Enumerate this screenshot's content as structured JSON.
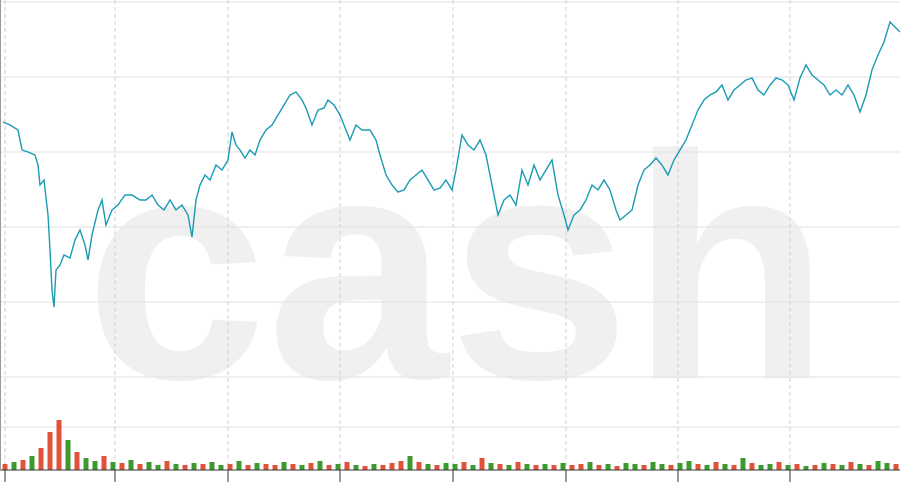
{
  "watermark": "cash",
  "chart_data": [
    {
      "type": "line",
      "color": "#1a9bb3",
      "grid": true,
      "xlim": [
        0,
        900
      ],
      "ylim": [
        0,
        470
      ],
      "xticks": [
        5,
        115,
        228,
        340,
        453,
        566,
        678,
        790
      ],
      "yticks": [
        43,
        93,
        168,
        243,
        318,
        393,
        468
      ],
      "x": [
        3,
        10,
        18,
        22,
        28,
        35,
        38,
        40,
        44,
        48,
        50,
        52,
        54,
        56,
        60,
        64,
        70,
        75,
        80,
        85,
        88,
        92,
        98,
        102,
        106,
        112,
        118,
        125,
        132,
        140,
        146,
        152,
        158,
        164,
        170,
        176,
        182,
        188,
        192,
        196,
        200,
        205,
        210,
        216,
        222,
        228,
        232,
        236,
        240,
        245,
        250,
        255,
        260,
        266,
        272,
        278,
        284,
        290,
        296,
        302,
        306,
        312,
        318,
        324,
        328,
        334,
        340,
        346,
        350,
        356,
        362,
        370,
        376,
        380,
        386,
        392,
        398,
        404,
        410,
        416,
        422,
        428,
        434,
        440,
        446,
        452,
        456,
        462,
        468,
        474,
        480,
        486,
        492,
        498,
        504,
        510,
        516,
        522,
        528,
        534,
        540,
        546,
        552,
        558,
        564,
        568,
        574,
        580,
        586,
        592,
        598,
        604,
        610,
        616,
        620,
        626,
        632,
        638,
        644,
        650,
        656,
        662,
        668,
        674,
        680,
        686,
        692,
        698,
        704,
        710,
        716,
        722,
        728,
        734,
        740,
        746,
        752,
        758,
        764,
        770,
        776,
        782,
        788,
        794,
        800,
        806,
        812,
        818,
        824,
        830,
        836,
        842,
        848,
        854,
        860,
        866,
        872,
        878,
        884,
        890,
        896,
        900
      ],
      "values": [
        348,
        345,
        340,
        320,
        318,
        315,
        305,
        285,
        290,
        255,
        220,
        180,
        163,
        200,
        205,
        215,
        212,
        230,
        240,
        225,
        210,
        235,
        260,
        270,
        245,
        260,
        265,
        275,
        275,
        270,
        270,
        275,
        265,
        260,
        270,
        260,
        265,
        255,
        233,
        270,
        285,
        295,
        290,
        305,
        300,
        310,
        338,
        325,
        320,
        312,
        320,
        315,
        330,
        340,
        345,
        355,
        365,
        375,
        378,
        370,
        362,
        345,
        360,
        362,
        370,
        365,
        355,
        340,
        330,
        345,
        340,
        340,
        330,
        315,
        295,
        285,
        278,
        280,
        290,
        295,
        300,
        290,
        280,
        282,
        290,
        280,
        300,
        335,
        325,
        320,
        330,
        315,
        285,
        255,
        270,
        275,
        265,
        300,
        285,
        305,
        290,
        300,
        310,
        275,
        255,
        240,
        255,
        260,
        270,
        285,
        280,
        290,
        280,
        260,
        250,
        255,
        260,
        285,
        300,
        305,
        312,
        305,
        295,
        310,
        320,
        330,
        345,
        360,
        370,
        375,
        378,
        385,
        370,
        380,
        385,
        390,
        392,
        380,
        375,
        385,
        392,
        390,
        385,
        370,
        392,
        405,
        395,
        390,
        385,
        375,
        380,
        375,
        385,
        375,
        358,
        375,
        400,
        415,
        428,
        448,
        442,
        438
      ]
    },
    {
      "type": "bar",
      "xlim": [
        0,
        900
      ],
      "ylim": [
        0,
        470
      ],
      "x": [
        5,
        14,
        23,
        32,
        41,
        50,
        59,
        68,
        77,
        86,
        95,
        104,
        113,
        122,
        131,
        140,
        149,
        158,
        167,
        176,
        185,
        194,
        203,
        212,
        221,
        230,
        239,
        248,
        257,
        266,
        275,
        284,
        293,
        302,
        311,
        320,
        329,
        338,
        347,
        356,
        365,
        374,
        383,
        392,
        401,
        410,
        419,
        428,
        437,
        446,
        455,
        464,
        473,
        482,
        491,
        500,
        509,
        518,
        527,
        536,
        545,
        554,
        563,
        572,
        581,
        590,
        599,
        608,
        617,
        626,
        635,
        644,
        653,
        662,
        671,
        680,
        689,
        698,
        707,
        716,
        725,
        734,
        743,
        752,
        761,
        770,
        779,
        788,
        797,
        806,
        815,
        824,
        833,
        842,
        851,
        860,
        869,
        878,
        887,
        896
      ],
      "values": [
        6,
        8,
        10,
        14,
        22,
        38,
        50,
        30,
        18,
        12,
        9,
        14,
        8,
        7,
        10,
        6,
        8,
        5,
        9,
        6,
        5,
        7,
        6,
        8,
        5,
        6,
        9,
        5,
        7,
        6,
        5,
        8,
        6,
        5,
        7,
        9,
        5,
        6,
        8,
        5,
        4,
        6,
        5,
        7,
        9,
        14,
        8,
        6,
        5,
        7,
        6,
        8,
        5,
        12,
        7,
        6,
        5,
        8,
        6,
        5,
        6,
        5,
        7,
        5,
        6,
        8,
        5,
        6,
        4,
        7,
        6,
        5,
        8,
        6,
        5,
        7,
        9,
        6,
        5,
        8,
        6,
        5,
        12,
        7,
        5,
        6,
        8,
        5,
        6,
        4,
        5,
        7,
        6,
        5,
        8,
        6,
        5,
        9,
        7,
        6
      ],
      "colors": [
        "#e0533a",
        "#3c9a2e",
        "#e0533a",
        "#3c9a2e",
        "#e0533a",
        "#e0533a",
        "#e0533a",
        "#3c9a2e",
        "#e0533a",
        "#3c9a2e",
        "#3c9a2e",
        "#e0533a",
        "#3c9a2e",
        "#e0533a",
        "#3c9a2e",
        "#e0533a",
        "#3c9a2e",
        "#3c9a2e",
        "#e0533a",
        "#3c9a2e",
        "#e0533a",
        "#3c9a2e",
        "#e0533a",
        "#3c9a2e",
        "#3c9a2e",
        "#e0533a",
        "#3c9a2e",
        "#e0533a",
        "#3c9a2e",
        "#e0533a",
        "#e0533a",
        "#3c9a2e",
        "#e0533a",
        "#3c9a2e",
        "#e0533a",
        "#3c9a2e",
        "#e0533a",
        "#3c9a2e",
        "#e0533a",
        "#3c9a2e",
        "#e0533a",
        "#3c9a2e",
        "#e0533a",
        "#e0533a",
        "#e0533a",
        "#3c9a2e",
        "#e0533a",
        "#3c9a2e",
        "#e0533a",
        "#3c9a2e",
        "#3c9a2e",
        "#e0533a",
        "#3c9a2e",
        "#e0533a",
        "#3c9a2e",
        "#e0533a",
        "#3c9a2e",
        "#e0533a",
        "#3c9a2e",
        "#e0533a",
        "#3c9a2e",
        "#e0533a",
        "#3c9a2e",
        "#e0533a",
        "#e0533a",
        "#3c9a2e",
        "#e0533a",
        "#3c9a2e",
        "#e0533a",
        "#3c9a2e",
        "#3c9a2e",
        "#e0533a",
        "#3c9a2e",
        "#3c9a2e",
        "#e0533a",
        "#3c9a2e",
        "#3c9a2e",
        "#e0533a",
        "#3c9a2e",
        "#e0533a",
        "#3c9a2e",
        "#e0533a",
        "#3c9a2e",
        "#e0533a",
        "#3c9a2e",
        "#3c9a2e",
        "#e0533a",
        "#3c9a2e",
        "#e0533a",
        "#3c9a2e",
        "#e0533a",
        "#3c9a2e",
        "#e0533a",
        "#3c9a2e",
        "#e0533a",
        "#3c9a2e",
        "#e0533a",
        "#3c9a2e",
        "#3c9a2e",
        "#e0533a"
      ]
    }
  ]
}
